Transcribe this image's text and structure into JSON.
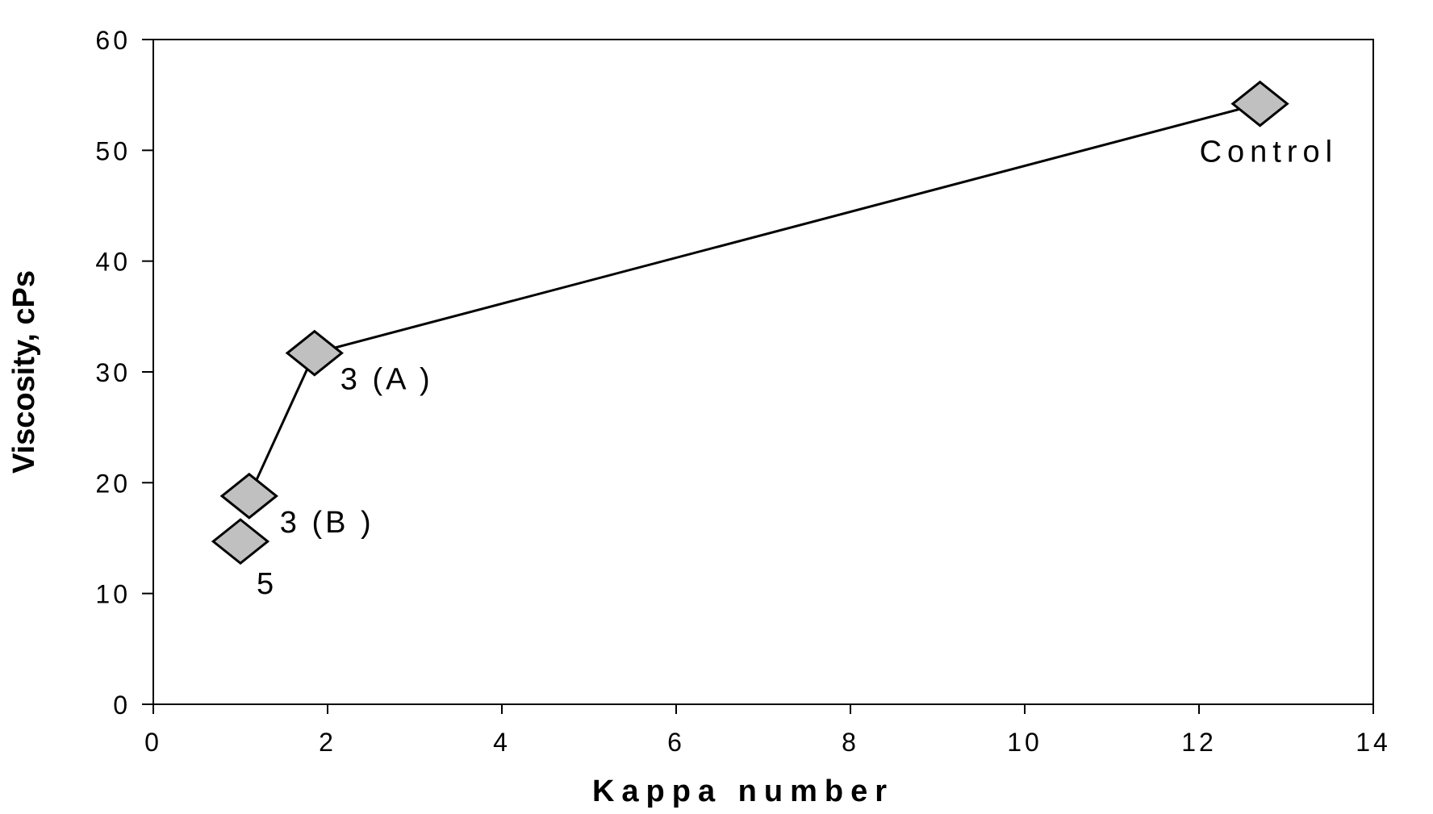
{
  "chart_data": {
    "type": "line",
    "title": "",
    "xlabel": "Kappa number",
    "ylabel": "Viscosity, cPs",
    "xlim": [
      0,
      14
    ],
    "ylim": [
      0,
      60
    ],
    "xticks": [
      "0",
      "2",
      "4",
      "6",
      "8",
      "10",
      "12",
      "14"
    ],
    "yticks": [
      "0",
      "10",
      "20",
      "30",
      "40",
      "50",
      "60"
    ],
    "grid": false,
    "legend": "none",
    "series": [
      {
        "values_x": [
          12.7,
          1.85,
          1.1,
          1.0
        ],
        "values_y": [
          54.2,
          31.7,
          18.8,
          14.7
        ],
        "labels": [
          "Control",
          "3 (A )",
          "3 (B )",
          "5"
        ],
        "connected": [
          true,
          true,
          true,
          false
        ]
      }
    ],
    "colors": {
      "marker_fill": "#c0c0c0",
      "marker_stroke": "#000000",
      "line": "#000000",
      "axis": "#000000"
    }
  }
}
